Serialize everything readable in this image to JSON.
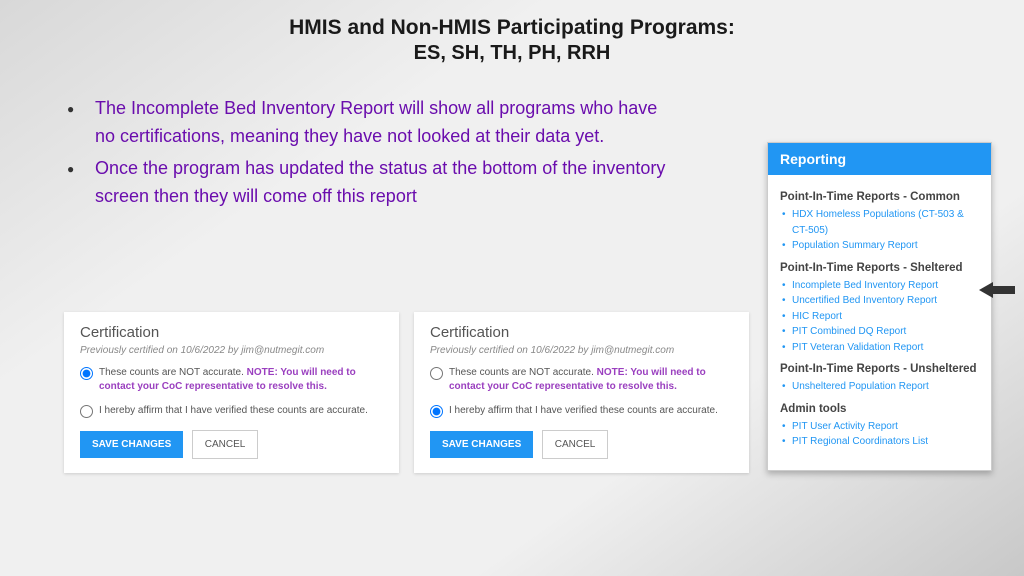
{
  "title_line1": "HMIS and Non-HMIS Participating Programs:",
  "title_line2": "ES, SH, TH, PH, RRH",
  "bullets": [
    "The Incomplete Bed Inventory Report will show all programs who have no certifications, meaning they have not looked at their data yet.",
    "Once the program has updated the status at the bottom of the inventory screen then they will come off this report"
  ],
  "cert": {
    "heading": "Certification",
    "previously": "Previously certified on 10/6/2022 by jim@nutmegit.com",
    "opt1_text": "These counts are NOT accurate. ",
    "opt1_note": "NOTE: You will need to contact your CoC representative to resolve this.",
    "opt2_text": "I hereby affirm that I have verified these counts are accurate.",
    "save": "SAVE CHANGES",
    "cancel": "CANCEL",
    "left_selected": "opt1",
    "right_selected": "opt2"
  },
  "sidebar": {
    "header": "Reporting",
    "sections": [
      {
        "title": "Point-In-Time Reports - Common",
        "items": [
          "HDX Homeless Populations (CT-503 & CT-505)",
          "Population Summary Report"
        ]
      },
      {
        "title": "Point-In-Time Reports - Sheltered",
        "items": [
          "Incomplete Bed Inventory Report",
          "Uncertified Bed Inventory Report",
          "HIC Report",
          "PIT Combined DQ Report",
          "PIT Veteran Validation Report"
        ]
      },
      {
        "title": "Point-In-Time Reports - Unsheltered",
        "items": [
          "Unsheltered Population Report"
        ]
      },
      {
        "title": "Admin tools",
        "items": [
          "PIT User Activity Report",
          "PIT Regional Coordinators List"
        ]
      }
    ]
  },
  "colors": {
    "accent_blue": "#2196f3",
    "bullet_text": "#6a0dad",
    "note_purple": "#9a3fbf",
    "arrow": "#333333"
  }
}
